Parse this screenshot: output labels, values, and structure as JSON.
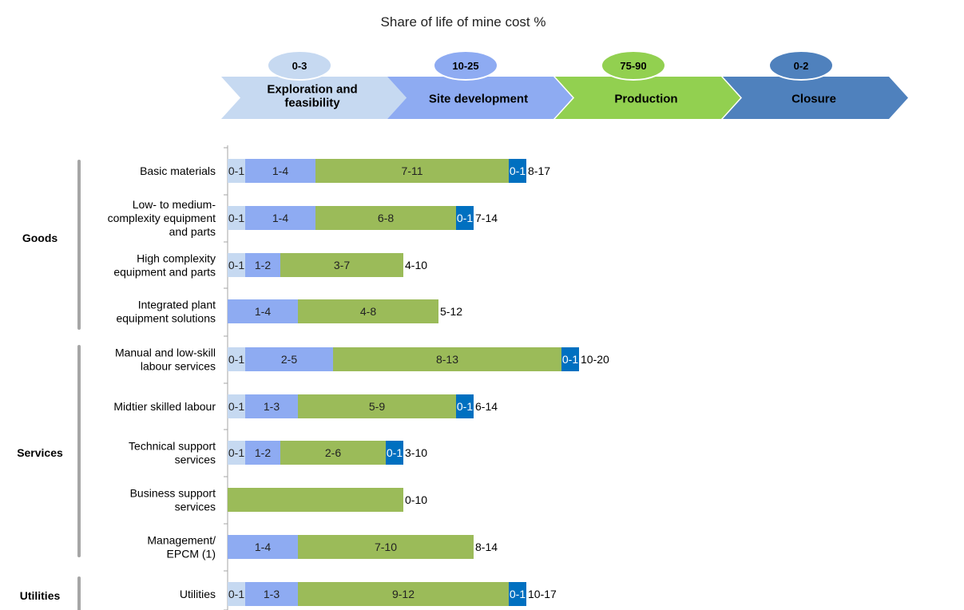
{
  "chart_data": {
    "type": "bar",
    "orientation": "horizontal",
    "stacked": true,
    "title": "Share of life of mine cost %",
    "xlabel": "",
    "ylabel": "",
    "grid": false,
    "legend": "none",
    "phases": [
      {
        "name": "Exploration and feasibility",
        "range": "0-3",
        "color": "#c6d9f1",
        "badge_color": "#c6d9f1",
        "text_color": "#000000"
      },
      {
        "name": "Site development",
        "range": "10-25",
        "color": "#8eabf2",
        "badge_color": "#8eabf2",
        "text_color": "#000000"
      },
      {
        "name": "Production",
        "range": "75-90",
        "color": "#92d050",
        "badge_color": "#92d050",
        "text_color": "#000000"
      },
      {
        "name": "Closure",
        "range": "0-2",
        "color": "#4f81bd",
        "badge_color": "#4f81bd",
        "text_color": "#000000"
      }
    ],
    "series_colors": [
      "#c6d9f1",
      "#8eabf2",
      "#9bbb59",
      "#0070c0"
    ],
    "groups": [
      {
        "name": "Goods",
        "first": 0,
        "last": 3
      },
      {
        "name": "Services",
        "first": 4,
        "last": 8
      },
      {
        "name": "Utilities",
        "first": 9,
        "last": 9
      }
    ],
    "categories": [
      "Basic materials",
      "Low- to medium-\ncomplexity equipment\nand parts",
      "High complexity\nequipment and parts",
      "Integrated plant\nequipment solutions",
      "Manual and low-skill\nlabour services",
      "Midtier skilled labour",
      "Technical support\nservices",
      "Business support\nservices",
      "Management/\nEPCM (1)",
      "Utilities"
    ],
    "rows": [
      {
        "segments": [
          {
            "phase": 0,
            "value": 1,
            "label": "0-1"
          },
          {
            "phase": 1,
            "value": 4,
            "label": "1-4"
          },
          {
            "phase": 2,
            "value": 11,
            "label": "7-11"
          },
          {
            "phase": 3,
            "value": 1,
            "label": "0-1"
          }
        ],
        "total_label": "8-17"
      },
      {
        "segments": [
          {
            "phase": 0,
            "value": 1,
            "label": "0-1"
          },
          {
            "phase": 1,
            "value": 4,
            "label": "1-4"
          },
          {
            "phase": 2,
            "value": 8,
            "label": "6-8"
          },
          {
            "phase": 3,
            "value": 1,
            "label": "0-1"
          }
        ],
        "total_label": "7-14"
      },
      {
        "segments": [
          {
            "phase": 0,
            "value": 1,
            "label": "0-1"
          },
          {
            "phase": 1,
            "value": 2,
            "label": "1-2"
          },
          {
            "phase": 2,
            "value": 7,
            "label": "3-7"
          }
        ],
        "total_label": "4-10"
      },
      {
        "segments": [
          {
            "phase": 1,
            "value": 4,
            "label": "1-4"
          },
          {
            "phase": 2,
            "value": 8,
            "label": "4-8"
          }
        ],
        "total_label": "5-12"
      },
      {
        "segments": [
          {
            "phase": 0,
            "value": 1,
            "label": "0-1"
          },
          {
            "phase": 1,
            "value": 5,
            "label": "2-5"
          },
          {
            "phase": 2,
            "value": 13,
            "label": "8-13"
          },
          {
            "phase": 3,
            "value": 1,
            "label": "0-1"
          }
        ],
        "total_label": "10-20"
      },
      {
        "segments": [
          {
            "phase": 0,
            "value": 1,
            "label": "0-1"
          },
          {
            "phase": 1,
            "value": 3,
            "label": "1-3"
          },
          {
            "phase": 2,
            "value": 9,
            "label": "5-9"
          },
          {
            "phase": 3,
            "value": 1,
            "label": "0-1"
          }
        ],
        "total_label": "6-14"
      },
      {
        "segments": [
          {
            "phase": 0,
            "value": 1,
            "label": "0-1"
          },
          {
            "phase": 1,
            "value": 2,
            "label": "1-2"
          },
          {
            "phase": 2,
            "value": 6,
            "label": "2-6"
          },
          {
            "phase": 3,
            "value": 1,
            "label": "0-1"
          }
        ],
        "total_label": "3-10"
      },
      {
        "segments": [
          {
            "phase": 2,
            "value": 10,
            "label": ""
          }
        ],
        "total_label": "0-10"
      },
      {
        "segments": [
          {
            "phase": 1,
            "value": 4,
            "label": "1-4"
          },
          {
            "phase": 2,
            "value": 10,
            "label": "7-10"
          }
        ],
        "total_label": "8-14"
      },
      {
        "segments": [
          {
            "phase": 0,
            "value": 1,
            "label": "0-1"
          },
          {
            "phase": 1,
            "value": 3,
            "label": "1-3"
          },
          {
            "phase": 2,
            "value": 12,
            "label": "9-12"
          },
          {
            "phase": 3,
            "value": 1,
            "label": "0-1"
          }
        ],
        "total_label": "10-17"
      }
    ]
  }
}
